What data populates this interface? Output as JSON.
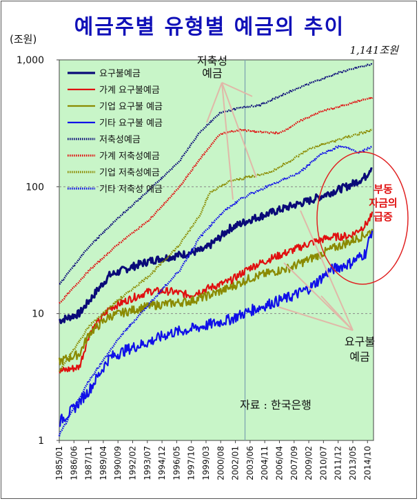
{
  "title": "예금주별 유형별 예금의 추이",
  "unit_label": "(조원)",
  "chart_data": {
    "type": "line",
    "scale": "log",
    "title": "예금주별 유형별 예금의 추이",
    "ylabel": "(조원)",
    "ylim": [
      1,
      1000
    ],
    "yticks": [
      1,
      10,
      100,
      1000
    ],
    "ytick_labels": [
      "1",
      "10",
      "100",
      "1,000"
    ],
    "x_categories": [
      "1985/01",
      "1986/06",
      "1987/11",
      "1989/04",
      "1990/09",
      "1992/02",
      "1993/07",
      "1994/12",
      "1996/05",
      "1997/10",
      "1999/03",
      "2000/08",
      "2002/01",
      "2003/06",
      "2004/11",
      "2006/04",
      "2007/09",
      "2009/02",
      "2010/07",
      "2011/12",
      "2013/05",
      "2014/10"
    ],
    "x_start": 1985.0,
    "x_end": 2016.3,
    "vline_year": 2003.5,
    "end_annotation": "1,141조원",
    "series": [
      {
        "name": "요구불예금",
        "group": "demand",
        "color": "#0a0a78",
        "style": "solid",
        "width": 3.2,
        "noise": 0.07,
        "years": [
          1985,
          1987,
          1989,
          1990,
          1992,
          1994,
          1996,
          1998,
          1999.5,
          2001,
          2002,
          2004,
          2006,
          2008,
          2010,
          2012,
          2014,
          2015.5,
          2016.2
        ],
        "values": [
          8.8,
          10,
          16,
          20,
          23,
          26,
          28,
          30,
          32,
          40,
          47,
          55,
          62,
          70,
          78,
          90,
          103,
          120,
          148
        ]
      },
      {
        "name": "가계 요구불예금",
        "group": "demand",
        "color": "#e01010",
        "style": "solid",
        "width": 2.2,
        "noise": 0.07,
        "years": [
          1985,
          1987,
          1988,
          1990,
          1992,
          1994,
          1996,
          1998,
          2000,
          2002,
          2004,
          2006,
          2008,
          2010,
          2012,
          2014,
          2015.5,
          2016.2
        ],
        "values": [
          3.5,
          3.8,
          7,
          11,
          13,
          15,
          15,
          14,
          16,
          18,
          23,
          27,
          31,
          36,
          40,
          41,
          50,
          60
        ]
      },
      {
        "name": "기업 요구불 예금",
        "group": "demand",
        "color": "#8a8a00",
        "style": "solid",
        "width": 2.2,
        "noise": 0.08,
        "years": [
          1985,
          1987,
          1988,
          1990,
          1992,
          1994,
          1996,
          1998,
          2000,
          2002,
          2004,
          2006,
          2008,
          2010,
          2012,
          2014,
          2015.5,
          2016.2
        ],
        "values": [
          4.2,
          4.8,
          7,
          9.5,
          10.5,
          11.5,
          12,
          12.5,
          14,
          16,
          19,
          21,
          23,
          27,
          32,
          37,
          42,
          45
        ]
      },
      {
        "name": "기타 요구불 예금",
        "group": "demand",
        "color": "#1010e8",
        "style": "solid",
        "width": 2.2,
        "noise": 0.1,
        "years": [
          1985,
          1986.5,
          1988,
          1990,
          1992,
          1994,
          1996,
          1998,
          2000,
          2002,
          2004,
          2006,
          2008,
          2010,
          2012,
          2014,
          2015.5,
          2016.2
        ],
        "values": [
          1.4,
          1.8,
          2.5,
          4.5,
          5.3,
          6,
          7,
          7.5,
          8.2,
          9,
          10.5,
          12,
          13.5,
          16,
          22,
          25,
          30,
          47
        ]
      },
      {
        "name": "저축성예금",
        "group": "savings",
        "color": "#0a0a78",
        "style": "dotted",
        "width": 2.6,
        "noise": 0.012,
        "years": [
          1985,
          1988,
          1991,
          1994,
          1997,
          1999,
          2001,
          2003,
          2005,
          2007,
          2009,
          2011,
          2013,
          2015,
          2016.2
        ],
        "values": [
          17,
          34,
          58,
          95,
          160,
          270,
          380,
          420,
          440,
          520,
          610,
          700,
          800,
          880,
          930
        ]
      },
      {
        "name": "가계 저축성예금",
        "group": "savings",
        "color": "#e01010",
        "style": "dotted",
        "width": 2.6,
        "noise": 0.012,
        "years": [
          1985,
          1988,
          1991,
          1994,
          1997,
          1999,
          2001,
          2003,
          2005,
          2007,
          2009,
          2011,
          2013,
          2015,
          2016.2
        ],
        "values": [
          12,
          22,
          36,
          55,
          100,
          165,
          260,
          280,
          270,
          265,
          330,
          390,
          430,
          480,
          500
        ]
      },
      {
        "name": "기업 저축성예금",
        "group": "savings",
        "color": "#8a8a00",
        "style": "dotted",
        "width": 2.6,
        "noise": 0.02,
        "years": [
          1985,
          1988,
          1991,
          1994,
          1997,
          1999,
          2000,
          2002,
          2004,
          2006,
          2008,
          2010,
          2012,
          2014,
          2016.2
        ],
        "values": [
          3.5,
          8,
          13,
          20,
          35,
          60,
          90,
          110,
          120,
          130,
          160,
          200,
          225,
          250,
          280
        ]
      },
      {
        "name": "기타 저축성 예금",
        "group": "savings",
        "color": "#1010e8",
        "style": "dotted",
        "width": 2.6,
        "noise": 0.02,
        "years": [
          1985,
          1988,
          1991,
          1994,
          1997,
          1999,
          2001,
          2003,
          2005,
          2007,
          2009,
          2011,
          2013,
          2015,
          2016.2
        ],
        "values": [
          1.1,
          3,
          6.5,
          12,
          22,
          40,
          60,
          80,
          95,
          110,
          130,
          180,
          210,
          185,
          210
        ]
      }
    ],
    "annotations": {
      "savings_label": [
        "저축성",
        "예금"
      ],
      "demand_label": [
        "요구불",
        "예금"
      ],
      "circle_label": [
        "부동",
        "자금의",
        "급증"
      ],
      "source": "자료 : 한국은행"
    }
  }
}
